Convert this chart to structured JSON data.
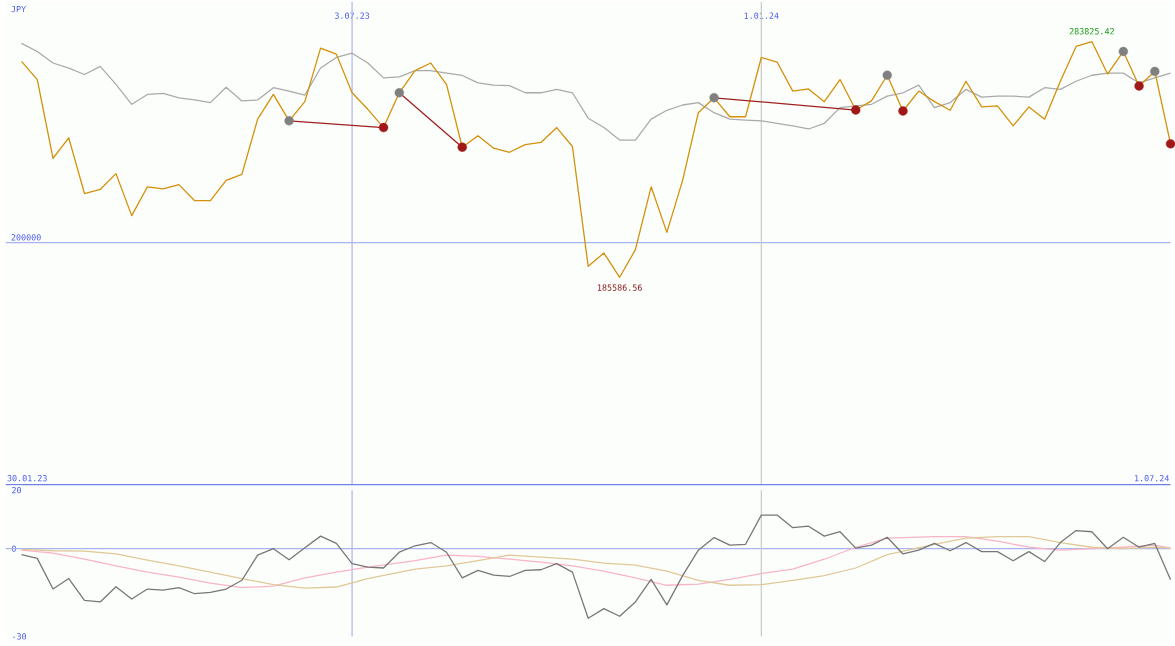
{
  "chart_data": [
    {
      "type": "line",
      "ylabel": "JPY",
      "x": [
        "2023-02-06",
        "2023-02-13",
        "2023-02-20",
        "2023-02-27",
        "2023-03-06",
        "2023-03-13",
        "2023-03-20",
        "2023-03-27",
        "2023-04-03",
        "2023-04-10",
        "2023-04-17",
        "2023-04-24",
        "2023-05-01",
        "2023-05-08",
        "2023-05-15",
        "2023-05-22",
        "2023-05-29",
        "2023-06-05",
        "2023-06-12",
        "2023-06-19",
        "2023-06-26",
        "2023-07-03",
        "2023-07-10",
        "2023-07-17",
        "2023-07-24",
        "2023-07-31",
        "2023-08-07",
        "2023-08-14",
        "2023-08-21",
        "2023-08-28",
        "2023-09-04",
        "2023-09-11",
        "2023-09-18",
        "2023-09-25",
        "2023-10-02",
        "2023-10-09",
        "2023-10-16",
        "2023-10-23",
        "2023-10-30",
        "2023-11-06",
        "2023-11-13",
        "2023-11-20",
        "2023-11-27",
        "2023-12-04",
        "2023-12-11",
        "2023-12-18",
        "2023-12-25",
        "2024-01-01",
        "2024-01-08",
        "2024-01-15",
        "2024-01-22",
        "2024-01-29",
        "2024-02-05",
        "2024-02-12",
        "2024-02-19",
        "2024-02-26",
        "2024-03-04",
        "2024-03-11",
        "2024-03-18",
        "2024-03-25",
        "2024-04-01",
        "2024-04-08",
        "2024-04-15",
        "2024-04-22",
        "2024-04-29",
        "2024-05-06",
        "2024-05-13",
        "2024-05-20",
        "2024-05-27",
        "2024-06-03",
        "2024-06-10",
        "2024-06-17",
        "2024-06-24",
        "2024-07-01"
      ],
      "xlim": [
        "2023-01-30",
        "2024-07-01"
      ],
      "xticks": [
        {
          "value": "2023-07-03",
          "label": "3.07.23"
        },
        {
          "value": "2024-01-01",
          "label": "1.01.24"
        }
      ],
      "ylim": [
        99200,
        300400
      ],
      "ref_lines": [
        {
          "axis": "y",
          "value": 200000,
          "label": "200000",
          "color": "#aab4f0"
        },
        {
          "axis": "x",
          "value": "2023-07-03",
          "color": "#aab4f0"
        },
        {
          "axis": "x",
          "value": "2024-01-01",
          "color": "#c8c8c8"
        }
      ],
      "annotations": [
        "30.01.23",
        "1.07.24"
      ],
      "series": [
        {
          "color": "#aaaaaa",
          "values": [
            283100,
            279700,
            274900,
            272800,
            270100,
            273500,
            266000,
            257700,
            261800,
            262200,
            260400,
            259500,
            258400,
            264800,
            259100,
            259500,
            264600,
            263200,
            261500,
            272800,
            277200,
            279000,
            274900,
            268700,
            269100,
            271700,
            271700,
            270700,
            269700,
            266600,
            265700,
            265500,
            262500,
            262500,
            263900,
            262500,
            251900,
            248000,
            242800,
            242800,
            251500,
            255200,
            257400,
            258400,
            254200,
            251500,
            251100,
            250800,
            249700,
            248700,
            247400,
            249700,
            256300,
            257000,
            257700,
            261100,
            262500,
            265700,
            256300,
            258400,
            263900,
            260700,
            261100,
            261100,
            260700,
            264600,
            263900,
            267300,
            269800,
            270700,
            270700,
            266600,
            268700,
            270700
          ]
        },
        {
          "color": "#d4900a",
          "values": [
            275600,
            268000,
            235200,
            243700,
            220500,
            222200,
            228800,
            211300,
            223300,
            222400,
            224200,
            217500,
            217500,
            226000,
            228500,
            251500,
            261800,
            250800,
            258800,
            281100,
            278600,
            262500,
            255600,
            248000,
            262500,
            271700,
            274900,
            266000,
            239800,
            244600,
            239400,
            237700,
            240900,
            241800,
            248000,
            240100,
            190200,
            195700,
            185586.56,
            197100,
            223300,
            204300,
            226000,
            254200,
            260400,
            252500,
            252500,
            277200,
            275300,
            263200,
            264100,
            258800,
            268000,
            255300,
            259100,
            269800,
            254900,
            263200,
            258800,
            255200,
            267300,
            256600,
            257000,
            248700,
            256600,
            251500,
            267300,
            281800,
            283825.42,
            270300,
            279700,
            265300,
            271400,
            241200
          ],
          "value_labels": [
            null,
            null,
            null,
            null,
            null,
            null,
            null,
            null,
            null,
            null,
            null,
            null,
            null,
            null,
            null,
            null,
            null,
            null,
            null,
            null,
            null,
            null,
            null,
            null,
            null,
            null,
            null,
            null,
            null,
            null,
            null,
            null,
            null,
            null,
            null,
            null,
            null,
            null,
            "185586.56",
            null,
            null,
            null,
            null,
            null,
            null,
            null,
            null,
            null,
            null,
            null,
            null,
            null,
            null,
            null,
            null,
            null,
            null,
            null,
            null,
            null,
            null,
            null,
            null,
            null,
            null,
            null,
            null,
            null,
            "283825.42",
            null,
            null,
            null,
            null,
            null
          ]
        },
        {
          "type": "line",
          "color": "#a02020",
          "x": [
            "2023-06-05",
            "2023-07-17"
          ],
          "values": [
            250800,
            248000
          ]
        },
        {
          "type": "line",
          "color": "#a02020",
          "x": [
            "2023-07-24",
            "2023-08-21"
          ],
          "values": [
            262500,
            239800
          ]
        },
        {
          "type": "line",
          "color": "#a02020",
          "x": [
            "2023-12-11",
            "2024-02-12"
          ],
          "values": [
            260400,
            255300
          ]
        },
        {
          "type": "scatter",
          "marker": "circle",
          "color": "#808080",
          "x": [
            "2023-06-05",
            "2023-07-24",
            "2023-12-11",
            "2024-02-26",
            "2024-06-10",
            "2024-06-24"
          ],
          "values": [
            250800,
            262500,
            260400,
            269800,
            279700,
            271400
          ]
        },
        {
          "type": "scatter",
          "marker": "circle",
          "color": "#a01818",
          "x": [
            "2023-07-17",
            "2023-08-21",
            "2024-02-12",
            "2024-03-04",
            "2024-06-17",
            "2024-07-01"
          ],
          "values": [
            248000,
            239800,
            255300,
            254900,
            265300,
            241200
          ]
        }
      ]
    },
    {
      "type": "line",
      "x": [
        "2023-02-06",
        "2023-02-13",
        "2023-02-20",
        "2023-02-27",
        "2023-03-06",
        "2023-03-13",
        "2023-03-20",
        "2023-03-27",
        "2023-04-03",
        "2023-04-10",
        "2023-04-17",
        "2023-04-24",
        "2023-05-01",
        "2023-05-08",
        "2023-05-15",
        "2023-05-22",
        "2023-05-29",
        "2023-06-05",
        "2023-06-12",
        "2023-06-19",
        "2023-06-26",
        "2023-07-03",
        "2023-07-10",
        "2023-07-17",
        "2023-07-24",
        "2023-07-31",
        "2023-08-07",
        "2023-08-14",
        "2023-08-21",
        "2023-08-28",
        "2023-09-04",
        "2023-09-11",
        "2023-09-18",
        "2023-09-25",
        "2023-10-02",
        "2023-10-09",
        "2023-10-16",
        "2023-10-23",
        "2023-10-30",
        "2023-11-06",
        "2023-11-13",
        "2023-11-20",
        "2023-11-27",
        "2023-12-04",
        "2023-12-11",
        "2023-12-18",
        "2023-12-25",
        "2024-01-01",
        "2024-01-08",
        "2024-01-15",
        "2024-01-22",
        "2024-01-29",
        "2024-02-05",
        "2024-02-12",
        "2024-02-19",
        "2024-02-26",
        "2024-03-04",
        "2024-03-11",
        "2024-03-18",
        "2024-03-25",
        "2024-04-01",
        "2024-04-08",
        "2024-04-15",
        "2024-04-22",
        "2024-04-29",
        "2024-05-06",
        "2024-05-13",
        "2024-05-20",
        "2024-05-27",
        "2024-06-03",
        "2024-06-10",
        "2024-06-17",
        "2024-06-24",
        "2024-07-01"
      ],
      "xlim": [
        "2023-01-30",
        "2024-07-01"
      ],
      "ylim": [
        -30,
        20
      ],
      "yticks": [
        -30,
        0,
        20
      ],
      "tick_labels": "y",
      "ref_lines": [
        {
          "axis": "y",
          "value": 0,
          "color": "#aab4f0"
        },
        {
          "axis": "x",
          "value": "2023-07-03",
          "color": "#aab4f0"
        },
        {
          "axis": "x",
          "value": "2024-01-01",
          "color": "#c8c8c8"
        }
      ],
      "series": [
        {
          "color": "#f8b4c8",
          "x": [
            "2023-02-06",
            "2023-02-20",
            "2023-03-06",
            "2023-03-20",
            "2023-04-03",
            "2023-04-17",
            "2023-05-01",
            "2023-05-15",
            "2023-05-29",
            "2023-06-12",
            "2023-06-26",
            "2023-07-10",
            "2023-07-31",
            "2023-08-14",
            "2023-08-28",
            "2023-09-11",
            "2023-09-25",
            "2023-10-09",
            "2023-10-23",
            "2023-11-06",
            "2023-11-20",
            "2023-12-04",
            "2023-12-18",
            "2024-01-01",
            "2024-01-15",
            "2024-01-29",
            "2024-02-12",
            "2024-02-26",
            "2024-03-18",
            "2024-04-01",
            "2024-04-15",
            "2024-04-29",
            "2024-05-13",
            "2024-05-27",
            "2024-06-10",
            "2024-06-24",
            "2024-07-01"
          ],
          "values": [
            -0.5,
            -1.5,
            -3.6,
            -5.9,
            -8.0,
            -9.7,
            -11.8,
            -13.3,
            -12.8,
            -10.0,
            -8.0,
            -6.3,
            -4.1,
            -2.2,
            -2.6,
            -3.6,
            -4.6,
            -5.9,
            -7.7,
            -10.0,
            -12.5,
            -12.1,
            -10.5,
            -8.5,
            -7.0,
            -3.6,
            0.5,
            3.6,
            4.1,
            4.1,
            2.6,
            0.5,
            -0.5,
            0,
            0.5,
            1.2,
            0.2
          ]
        },
        {
          "color": "#e0c898",
          "x": [
            "2023-02-06",
            "2023-02-20",
            "2023-03-06",
            "2023-03-20",
            "2023-04-03",
            "2023-04-17",
            "2023-05-01",
            "2023-05-15",
            "2023-05-29",
            "2023-06-12",
            "2023-06-26",
            "2023-07-10",
            "2023-07-31",
            "2023-08-14",
            "2023-08-28",
            "2023-09-11",
            "2023-09-25",
            "2023-10-09",
            "2023-10-23",
            "2023-11-06",
            "2023-11-20",
            "2023-12-04",
            "2023-12-18",
            "2024-01-01",
            "2024-01-15",
            "2024-01-29",
            "2024-02-12",
            "2024-02-26",
            "2024-03-18",
            "2024-04-01",
            "2024-04-15",
            "2024-04-29",
            "2024-05-13",
            "2024-05-27",
            "2024-06-10",
            "2024-06-24",
            "2024-07-01"
          ],
          "values": [
            -0.2,
            -0.7,
            -0.8,
            -1.8,
            -3.9,
            -5.9,
            -8.0,
            -10.2,
            -12.3,
            -13.5,
            -13.1,
            -10.2,
            -7.0,
            -5.9,
            -4.1,
            -2.2,
            -2.9,
            -3.6,
            -4.9,
            -5.6,
            -7.7,
            -10.8,
            -12.5,
            -12.3,
            -10.8,
            -9.2,
            -6.6,
            -2.0,
            1.5,
            3.6,
            4.1,
            4.1,
            2.1,
            0.5,
            0,
            0.5,
            0.2
          ]
        },
        {
          "color": "#777777",
          "values": [
            -2.0,
            -3.3,
            -13.8,
            -10.2,
            -17.7,
            -18.2,
            -13.0,
            -17.2,
            -13.8,
            -14.2,
            -13.3,
            -15.4,
            -14.9,
            -13.8,
            -10.8,
            -2.2,
            0,
            -3.8,
            0.3,
            4.3,
            1.8,
            -5.1,
            -6.3,
            -6.6,
            -1.2,
            1.0,
            2.1,
            -1.2,
            -10.0,
            -7.4,
            -9.0,
            -9.5,
            -7.4,
            -7.2,
            -5.1,
            -8.0,
            -23.8,
            -20.5,
            -23.1,
            -18.2,
            -10.5,
            -19.2,
            -9.2,
            -0.5,
            3.8,
            1.2,
            1.5,
            11.5,
            11.5,
            7.2,
            7.7,
            4.3,
            5.8,
            0.2,
            1.2,
            3.9,
            -1.8,
            -0.5,
            1.8,
            -0.7,
            2.1,
            -1.0,
            -1.0,
            -4.1,
            -1.0,
            -4.4,
            2.1,
            6.2,
            5.8,
            0,
            3.9,
            0.5,
            1.8,
            -10.6
          ]
        }
      ]
    }
  ]
}
